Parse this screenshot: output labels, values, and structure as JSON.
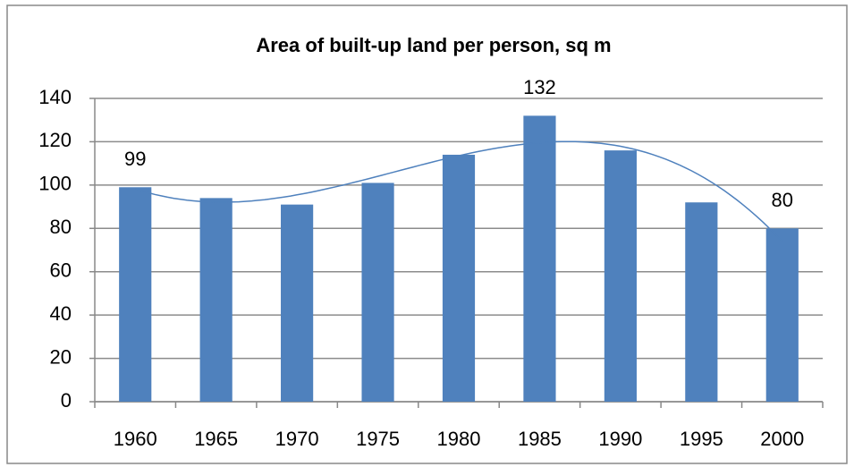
{
  "chart_data": {
    "type": "bar",
    "title": "Area of built-up land per person, sq m",
    "categories": [
      "1960",
      "1965",
      "1970",
      "1975",
      "1980",
      "1985",
      "1990",
      "1995",
      "2000"
    ],
    "values": [
      99,
      94,
      91,
      101,
      114,
      132,
      116,
      92,
      80
    ],
    "value_labels": [
      99,
      null,
      null,
      null,
      null,
      132,
      null,
      null,
      80
    ],
    "color": "#4f81bd",
    "trendline": "polynomial",
    "ylim": [
      0,
      140
    ],
    "yticks": [
      0,
      20,
      40,
      60,
      80,
      100,
      120,
      140
    ],
    "grid": true
  }
}
